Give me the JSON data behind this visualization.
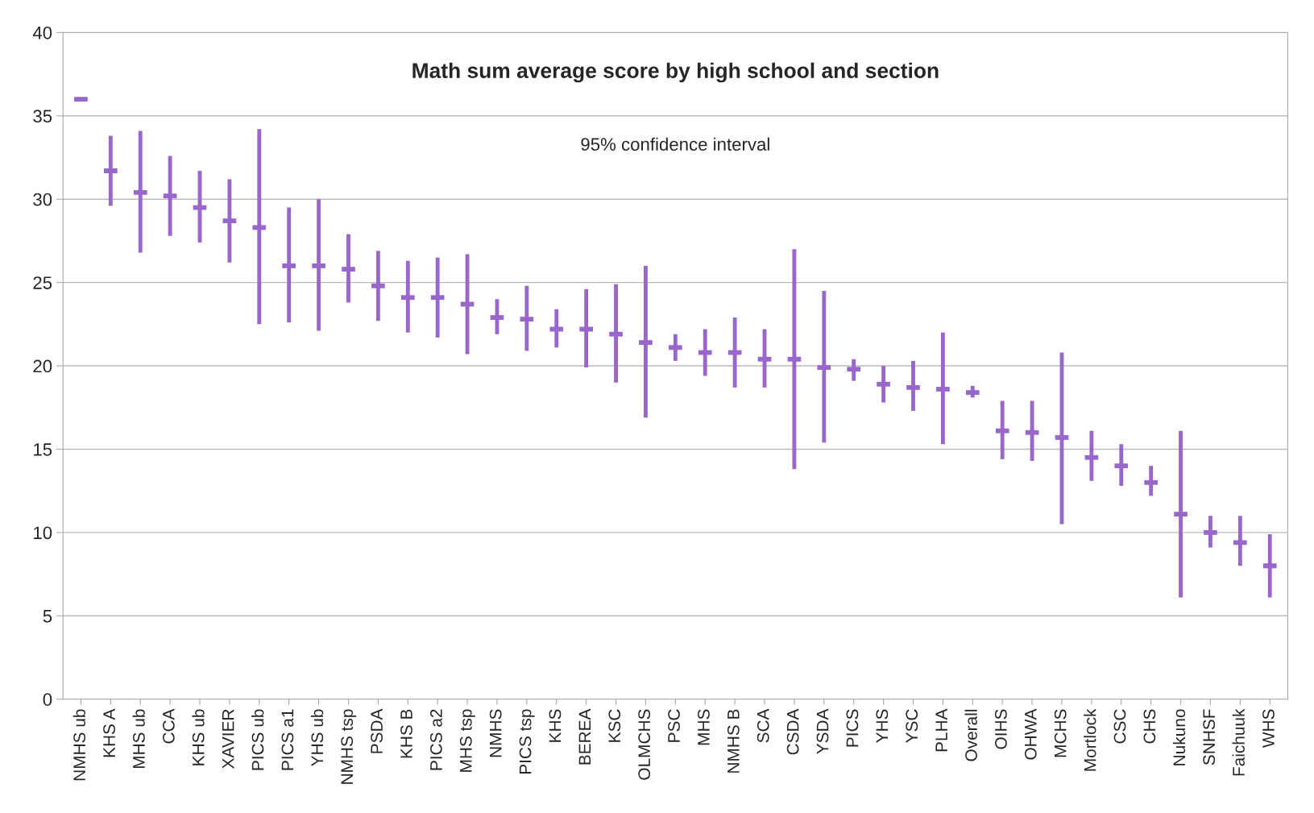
{
  "chart_data": {
    "type": "scatter",
    "title": "Math sum average score by high school and section",
    "annotations": [
      "95% confidence interval"
    ],
    "categories": [
      "NMHS ub",
      "KHS A",
      "MHS ub",
      "CCA",
      "KHS ub",
      "XAVIER",
      "PICS ub",
      "PICS a1",
      "YHS ub",
      "NMHS tsp",
      "PSDA",
      "KHS B",
      "PICS a2",
      "MHS tsp",
      "NMHS",
      "PICS tsp",
      "KHS",
      "BEREA",
      "KSC",
      "OLMCHS",
      "PSC",
      "MHS",
      "NMHS B",
      "SCA",
      "CSDA",
      "YSDA",
      "PICS",
      "YHS",
      "YSC",
      "PLHA",
      "Overall",
      "OIHS",
      "OHWA",
      "MCHS",
      "Mortlock",
      "CSC",
      "CHS",
      "Nukuno",
      "SNHSF",
      "Faichuuk",
      "WHS"
    ],
    "series": [
      {
        "color": "#9966cc",
        "values": [
          36.0,
          31.7,
          30.4,
          30.2,
          29.5,
          28.7,
          28.3,
          26.0,
          26.0,
          25.8,
          24.8,
          24.1,
          24.1,
          23.7,
          22.9,
          22.8,
          22.2,
          22.2,
          21.9,
          21.4,
          21.1,
          20.8,
          20.8,
          20.4,
          20.4,
          19.9,
          19.8,
          18.9,
          18.7,
          18.6,
          18.4,
          16.1,
          16.0,
          15.7,
          14.5,
          14.0,
          13.0,
          11.1,
          10.0,
          9.4,
          8.0
        ],
        "errors": [
          [
            35.9,
            36.1
          ],
          [
            29.6,
            33.8
          ],
          [
            26.8,
            34.1
          ],
          [
            27.8,
            32.6
          ],
          [
            27.4,
            31.7
          ],
          [
            26.2,
            31.2
          ],
          [
            22.5,
            34.2
          ],
          [
            22.6,
            29.5
          ],
          [
            22.1,
            30.0
          ],
          [
            23.8,
            27.9
          ],
          [
            22.7,
            26.9
          ],
          [
            22.0,
            26.3
          ],
          [
            21.7,
            26.5
          ],
          [
            20.7,
            26.7
          ],
          [
            21.9,
            24.0
          ],
          [
            20.9,
            24.8
          ],
          [
            21.1,
            23.4
          ],
          [
            19.9,
            24.6
          ],
          [
            19.0,
            24.9
          ],
          [
            16.9,
            26.0
          ],
          [
            20.3,
            21.9
          ],
          [
            19.4,
            22.2
          ],
          [
            18.7,
            22.9
          ],
          [
            18.7,
            22.2
          ],
          [
            13.8,
            27.0
          ],
          [
            15.4,
            24.5
          ],
          [
            19.1,
            20.4
          ],
          [
            17.8,
            20.0
          ],
          [
            17.3,
            20.3
          ],
          [
            15.3,
            22.0
          ],
          [
            18.1,
            18.8
          ],
          [
            14.4,
            17.9
          ],
          [
            14.3,
            17.9
          ],
          [
            10.5,
            20.8
          ],
          [
            13.1,
            16.1
          ],
          [
            12.8,
            15.3
          ],
          [
            12.2,
            14.0
          ],
          [
            6.1,
            16.1
          ],
          [
            9.1,
            11.0
          ],
          [
            8.0,
            11.0
          ],
          [
            6.1,
            9.9
          ]
        ]
      }
    ],
    "ylim": [
      0,
      40
    ],
    "yticks": [
      0,
      5,
      10,
      15,
      20,
      25,
      30,
      35,
      40
    ],
    "grid": "y"
  }
}
